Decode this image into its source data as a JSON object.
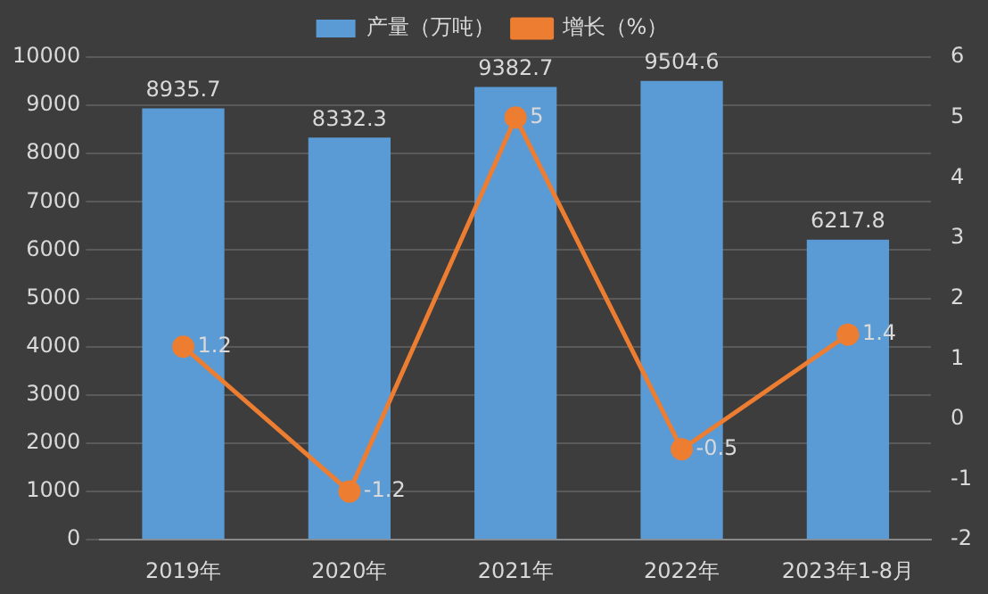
{
  "chart_data": {
    "type": "bar",
    "categories": [
      "2019年",
      "2020年",
      "2021年",
      "2022年",
      "2023年1-8月"
    ],
    "series": [
      {
        "name": "产量（万吨）",
        "color": "#5b9bd5",
        "values": [
          8935.7,
          8332.3,
          9382.7,
          9504.6,
          6217.8
        ]
      },
      {
        "name": "增长（%）",
        "type": "line",
        "axis": "y2",
        "color": "#ed7d31",
        "values": [
          1.2,
          -1.2,
          5,
          -0.5,
          1.4
        ]
      }
    ],
    "ylim": [
      0,
      10000
    ],
    "yticks": [
      0,
      1000,
      2000,
      3000,
      4000,
      5000,
      6000,
      7000,
      8000,
      9000,
      10000
    ],
    "y2lim": [
      -2,
      6
    ],
    "y2ticks": [
      -2,
      -1,
      0,
      1,
      2,
      3,
      4,
      5,
      6
    ],
    "grid": "y",
    "legend": "top",
    "marker": "circle",
    "line_style": "solid",
    "data_labels": true
  }
}
